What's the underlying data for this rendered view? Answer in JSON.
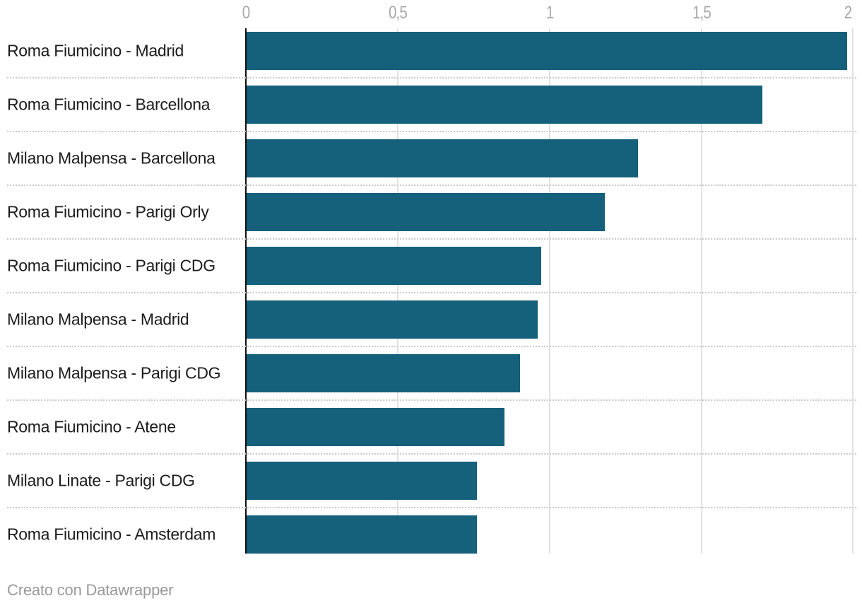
{
  "chart_data": {
    "type": "bar",
    "orientation": "horizontal",
    "title": "",
    "xlabel": "",
    "ylabel": "",
    "categories": [
      "Roma Fiumicino - Madrid",
      "Roma Fiumicino - Barcellona",
      "Milano Malpensa - Barcellona",
      "Roma Fiumicino - Parigi Orly",
      "Roma Fiumicino - Parigi CDG",
      "Milano Malpensa - Madrid",
      "Milano Malpensa - Parigi CDG",
      "Roma Fiumicino - Atene",
      "Milano Linate - Parigi CDG",
      "Roma Fiumicino - Amsterdam"
    ],
    "values": [
      1.98,
      1.7,
      1.29,
      1.18,
      0.97,
      0.96,
      0.9,
      0.85,
      0.76,
      0.76
    ],
    "x_axis": {
      "min": 0,
      "max": 2,
      "tick_values": [
        0,
        0.5,
        1,
        1.5,
        2
      ],
      "tick_labels": [
        "0",
        "0,5",
        "1",
        "1,5",
        "2"
      ],
      "grid": true,
      "position": "top",
      "number_format": "italian-decimal-comma"
    },
    "legend": "none",
    "bar_color": "#15607a",
    "zero_axis_color": "#101010",
    "gridline_color": "#e2e2e2",
    "separator_color": "#c9c9c9",
    "label_color": "#1c1c1c",
    "tick_color": "#a8a8a8"
  },
  "footer": {
    "credit": "Creato con Datawrapper"
  }
}
